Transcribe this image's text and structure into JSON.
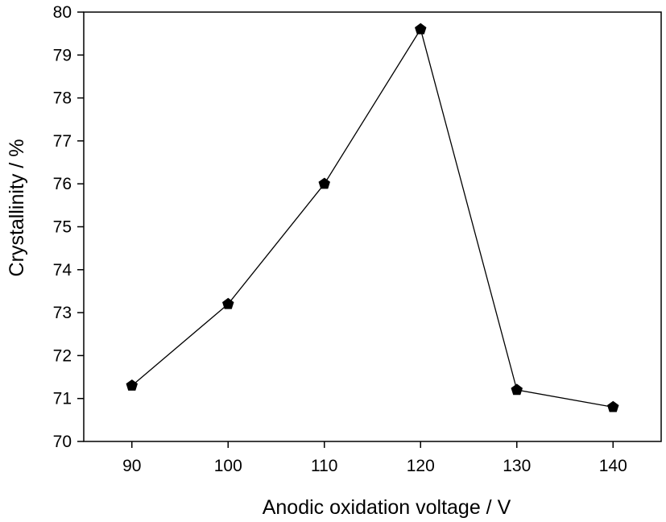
{
  "chart_data": {
    "type": "line",
    "title": "",
    "xlabel": "Anodic oxidation voltage / V",
    "ylabel": "Crystallinity / %",
    "x": [
      90,
      100,
      110,
      120,
      130,
      140
    ],
    "series": [
      {
        "values": [
          71.3,
          73.2,
          76.0,
          79.6,
          71.2,
          70.8
        ],
        "marker": "pentagon",
        "color": "#000000"
      }
    ],
    "xlim": [
      85,
      145
    ],
    "ylim": [
      70,
      80
    ],
    "xticks": [
      90,
      100,
      110,
      120,
      130,
      140
    ],
    "yticks": [
      70,
      71,
      72,
      73,
      74,
      75,
      76,
      77,
      78,
      79,
      80
    ],
    "grid": false,
    "legend": "none"
  }
}
